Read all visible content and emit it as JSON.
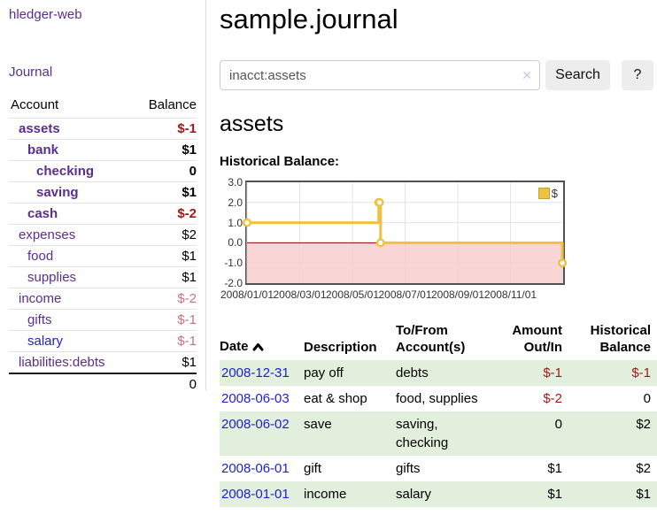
{
  "app": {
    "title": "hledger-web"
  },
  "sidebar": {
    "journal_label": "Journal",
    "accounts_table": {
      "headers": [
        "Account",
        "Balance"
      ],
      "rows": [
        {
          "name": "assets",
          "balance": "$-1",
          "depth": 1,
          "bold": true,
          "name_color": "purple",
          "balance_color": "negative_dark"
        },
        {
          "name": "bank",
          "balance": "$1",
          "depth": 2,
          "bold": true,
          "name_color": "purple",
          "balance_color": "default"
        },
        {
          "name": "checking",
          "balance": "0",
          "depth": 3,
          "bold": true,
          "name_color": "purple",
          "balance_color": "default"
        },
        {
          "name": "saving",
          "balance": "$1",
          "depth": 3,
          "bold": true,
          "name_color": "purple",
          "balance_color": "default"
        },
        {
          "name": "cash",
          "balance": "$-2",
          "depth": 2,
          "bold": true,
          "name_color": "purple",
          "balance_color": "negative_dark"
        },
        {
          "name": "expenses",
          "balance": "$2",
          "depth": 1,
          "bold": false,
          "name_color": "purple",
          "balance_color": "default"
        },
        {
          "name": "food",
          "balance": "$1",
          "depth": 2,
          "bold": false,
          "name_color": "purple",
          "balance_color": "default"
        },
        {
          "name": "supplies",
          "balance": "$1",
          "depth": 2,
          "bold": false,
          "name_color": "purple",
          "balance_color": "default"
        },
        {
          "name": "income",
          "balance": "$-2",
          "depth": 1,
          "bold": false,
          "name_color": "purple",
          "balance_color": "negative_light"
        },
        {
          "name": "gifts",
          "balance": "$-1",
          "depth": 2,
          "bold": false,
          "name_color": "purple",
          "balance_color": "negative_light"
        },
        {
          "name": "salary",
          "balance": "$-1",
          "depth": 2,
          "bold": false,
          "name_color": "blue",
          "balance_color": "negative_light"
        },
        {
          "name": "liabilities:debts",
          "balance": "$1",
          "depth": 1,
          "bold": false,
          "name_color": "purple",
          "balance_color": "default"
        }
      ],
      "total": "0"
    }
  },
  "main": {
    "title": "sample.journal",
    "search": {
      "value": "inacct:assets",
      "clear_icon": "✕",
      "button_label": "Search",
      "help_label": "?"
    },
    "account_heading": "assets",
    "chart_label": "Historical Balance:"
  },
  "chart_data": {
    "type": "line",
    "step": true,
    "title": "Historical Balance:",
    "legend": [
      {
        "label": "$",
        "color": "#edc240"
      }
    ],
    "x_unit": "months since 2008-01-01",
    "points": [
      {
        "date": "2008-01-01",
        "x": 0,
        "y": 1
      },
      {
        "date": "2008-06-01",
        "x": 5.0,
        "y": 2
      },
      {
        "date": "2008-06-02",
        "x": 5.03,
        "y": 2
      },
      {
        "date": "2008-06-03",
        "x": 5.07,
        "y": 0
      },
      {
        "date": "2008-12-31",
        "x": 11.97,
        "y": -1
      }
    ],
    "xlim": [
      0,
      12
    ],
    "ylim": [
      -2,
      3
    ],
    "x_ticks": [
      {
        "pos": 0,
        "label": "2008/01/01"
      },
      {
        "pos": 2,
        "label": "2008/03/01"
      },
      {
        "pos": 4,
        "label": "2008/05/01"
      },
      {
        "pos": 6,
        "label": "2008/07/01"
      },
      {
        "pos": 8,
        "label": "2008/09/01"
      },
      {
        "pos": 10,
        "label": "2008/11/01"
      }
    ],
    "y_ticks": [
      {
        "pos": 3,
        "label": "3.0"
      },
      {
        "pos": 2,
        "label": "2.0"
      },
      {
        "pos": 1,
        "label": "1.0"
      },
      {
        "pos": 0,
        "label": "0.0"
      },
      {
        "pos": -1,
        "label": "-1.0"
      },
      {
        "pos": -2,
        "label": "-2.0"
      }
    ],
    "negative_region_shaded": true,
    "grid": true,
    "legend_position": "top-right"
  },
  "register_table": {
    "headers": [
      "Date",
      "Description",
      "To/From Account(s)",
      "Amount Out/In",
      "Historical Balance"
    ],
    "sort": {
      "column": "Date",
      "direction": "asc"
    },
    "rows": [
      {
        "date": "2008-12-31",
        "description": "pay off",
        "accounts": "debts",
        "amount": "$-1",
        "amount_color": "negative_dark",
        "balance": "$-1",
        "balance_color": "negative_dark"
      },
      {
        "date": "2008-06-03",
        "description": "eat & shop",
        "accounts": "food, supplies",
        "amount": "$-2",
        "amount_color": "negative_dark",
        "balance": "0",
        "balance_color": "default"
      },
      {
        "date": "2008-06-02",
        "description": "save",
        "accounts": "saving, checking",
        "amount": "0",
        "amount_color": "default",
        "balance": "$2",
        "balance_color": "default"
      },
      {
        "date": "2008-06-01",
        "description": "gift",
        "accounts": "gifts",
        "amount": "$1",
        "amount_color": "default",
        "balance": "$2",
        "balance_color": "default"
      },
      {
        "date": "2008-01-01",
        "description": "income",
        "accounts": "salary",
        "amount": "$1",
        "amount_color": "default",
        "balance": "$1",
        "balance_color": "default"
      }
    ]
  },
  "colors": {
    "link_purple": "#5b2d91",
    "link_blue": "#2121cc",
    "negative_dark": "#9d1919",
    "negative_light": "#c9737f",
    "row_stripe_green": "#e3efdd",
    "chart_line": "#edc240",
    "chart_negative_fill": "#f7caca",
    "chart_zero_line": "#8b0000",
    "chart_grid": "#e4e4e4",
    "chart_border": "#515151",
    "button_bg": "#ededed",
    "clear_icon": "#cfc4e4"
  }
}
